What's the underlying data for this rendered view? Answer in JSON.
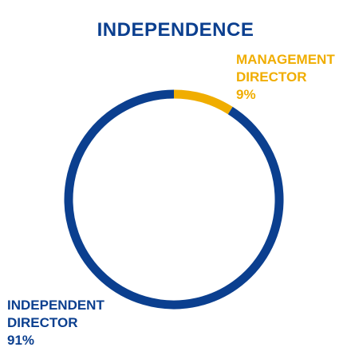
{
  "chart_data": {
    "type": "pie",
    "title": "INDEPENDENCE",
    "categories": [
      "MANAGEMENT DIRECTOR",
      "INDEPENDENT DIRECTOR"
    ],
    "values": [
      9,
      91
    ],
    "unit": "%",
    "donut": true,
    "slices": [
      {
        "label_lines": [
          "MANAGEMENT",
          "DIRECTOR"
        ],
        "value": 9,
        "value_text": "9%",
        "color": "#f0ad00"
      },
      {
        "label_lines": [
          "INDEPENDENT",
          "DIRECTOR"
        ],
        "value": 91,
        "value_text": "91%",
        "color": "#0b3f8f"
      }
    ]
  }
}
